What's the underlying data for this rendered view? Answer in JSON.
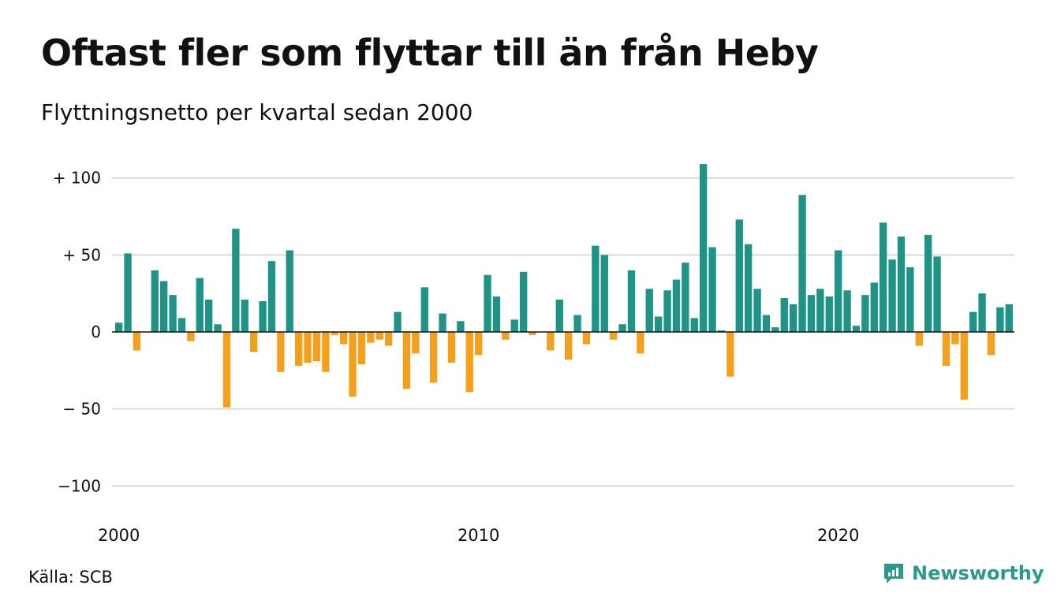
{
  "chart_data": {
    "type": "bar",
    "title": "Oftast fler som flyttar till än från Heby",
    "subtitle": "Flyttningsnetto per kvartal sedan 2000",
    "xlabel": "",
    "ylabel": "",
    "ylim": [
      -100,
      110
    ],
    "y_ticks": [
      {
        "value": 100,
        "label": "+ 100"
      },
      {
        "value": 50,
        "label": "+  50"
      },
      {
        "value": 0,
        "label": "0"
      },
      {
        "value": -50,
        "label": "− 50"
      },
      {
        "value": -100,
        "label": "−100"
      }
    ],
    "x_ticks": [
      {
        "index": 0,
        "label": "2000"
      },
      {
        "index": 40,
        "label": "2010"
      },
      {
        "index": 80,
        "label": "2020"
      }
    ],
    "grid": true,
    "colors": {
      "positive": "#1f9486",
      "negative": "#f5a01d",
      "grid": "#d9d9d9",
      "zero_line": "#111111"
    },
    "values": [
      6,
      51,
      -12,
      0,
      40,
      33,
      24,
      9,
      -6,
      35,
      21,
      5,
      -49,
      67,
      21,
      -13,
      20,
      46,
      -26,
      53,
      -22,
      -20,
      -19,
      -26,
      -2,
      -8,
      -42,
      -21,
      -7,
      -5,
      -9,
      13,
      -37,
      -14,
      29,
      -33,
      12,
      -20,
      7,
      -39,
      -15,
      37,
      23,
      -5,
      8,
      39,
      -2,
      0,
      -12,
      21,
      -18,
      11,
      -8,
      56,
      50,
      -5,
      5,
      40,
      -14,
      28,
      10,
      27,
      34,
      45,
      9,
      109,
      55,
      1,
      -29,
      73,
      57,
      28,
      11,
      3,
      22,
      18,
      89,
      24,
      28,
      23,
      53,
      27,
      4,
      24,
      32,
      71,
      47,
      62,
      42,
      -9,
      63,
      49,
      -22,
      -8,
      -44,
      13,
      25,
      -15,
      16,
      18
    ]
  },
  "source": "Källa: SCB",
  "brand": {
    "name": "Newsworthy",
    "icon": "newsworthy-logo-icon",
    "color": "#2b9a8c"
  }
}
